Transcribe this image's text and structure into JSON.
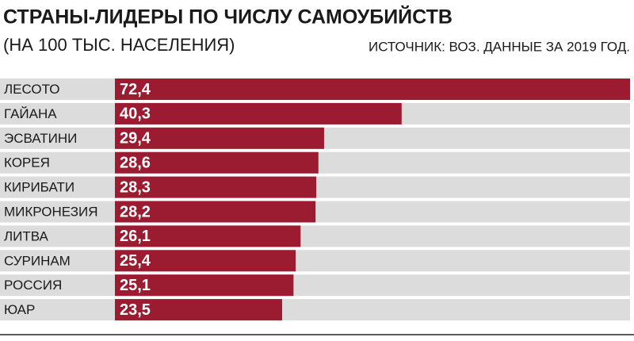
{
  "chart_data": {
    "type": "bar",
    "orientation": "horizontal",
    "title": "СТРАНЫ-ЛИДЕРЫ ПО ЧИСЛУ САМОУБИЙСТВ",
    "subtitle": "(НА 100 ТЫС. НАСЕЛЕНИЯ)",
    "source": "ИСТОЧНИК: ВОЗ. ДАННЫЕ ЗА 2019 ГОД.",
    "categories": [
      "ЛЕСОТО",
      "ГАЙАНА",
      "ЭСВАТИНИ",
      "КОРЕЯ",
      "КИРИБАТИ",
      "МИКРОНЕЗИЯ",
      "ЛИТВА",
      "СУРИНАМ",
      "РОССИЯ",
      "ЮАР"
    ],
    "values": [
      72.4,
      40.3,
      29.4,
      28.6,
      28.3,
      28.2,
      26.1,
      25.4,
      25.1,
      23.5
    ],
    "value_labels": [
      "72,4",
      "40,3",
      "29,4",
      "28,6",
      "28,3",
      "28,2",
      "26,1",
      "25,4",
      "25,1",
      "23,5"
    ],
    "color": "#9b1b30",
    "xlim": [
      0,
      72.4
    ]
  }
}
